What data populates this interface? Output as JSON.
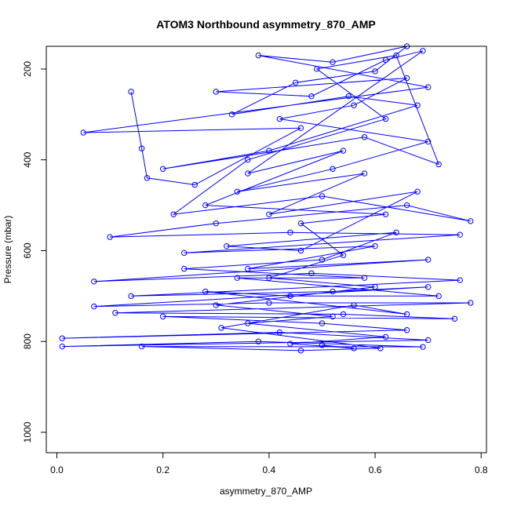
{
  "chart_data": {
    "type": "line",
    "title": "ATOM3 Northbound asymmetry_870_AMP",
    "xlabel": "asymmetry_870_AMP",
    "ylabel": "Pressure (mbar)",
    "xlim": [
      -0.02,
      0.81
    ],
    "ylim": [
      1045,
      150
    ],
    "y_reversed": true,
    "x_ticks": [
      0.0,
      0.2,
      0.4,
      0.6,
      0.8
    ],
    "x_tick_labels": [
      "0.0",
      "0.2",
      "0.4",
      "0.6",
      "0.8"
    ],
    "y_ticks": [
      200,
      400,
      600,
      800,
      1000
    ],
    "y_tick_labels": [
      "200",
      "400",
      "600",
      "800",
      "1000"
    ],
    "grid": false,
    "legend": "none",
    "marker": "open-circle",
    "series": [
      {
        "color": "#0000ff",
        "points": [
          [
            0.14,
            250
          ],
          [
            0.16,
            375
          ],
          [
            0.17,
            440
          ],
          [
            0.26,
            455
          ],
          [
            0.46,
            330
          ],
          [
            0.05,
            340
          ],
          [
            0.7,
            240
          ],
          [
            0.38,
            170
          ],
          [
            0.52,
            185
          ],
          [
            0.66,
            150
          ],
          [
            0.6,
            205
          ],
          [
            0.45,
            230
          ],
          [
            0.33,
            300
          ],
          [
            0.55,
            260
          ],
          [
            0.68,
            280
          ],
          [
            0.4,
            380
          ],
          [
            0.2,
            420
          ],
          [
            0.58,
            350
          ],
          [
            0.72,
            410
          ],
          [
            0.64,
            170
          ],
          [
            0.49,
            200
          ],
          [
            0.62,
            310
          ],
          [
            0.36,
            400
          ],
          [
            0.22,
            520
          ],
          [
            0.5,
            480
          ],
          [
            0.78,
            535
          ],
          [
            0.66,
            500
          ],
          [
            0.3,
            540
          ],
          [
            0.1,
            570
          ],
          [
            0.44,
            560
          ],
          [
            0.76,
            565
          ],
          [
            0.24,
            605
          ],
          [
            0.6,
            590
          ],
          [
            0.36,
            640
          ],
          [
            0.7,
            620
          ],
          [
            0.07,
            668
          ],
          [
            0.48,
            650
          ],
          [
            0.76,
            665
          ],
          [
            0.14,
            700
          ],
          [
            0.52,
            690
          ],
          [
            0.7,
            680
          ],
          [
            0.07,
            723
          ],
          [
            0.4,
            715
          ],
          [
            0.78,
            715
          ],
          [
            0.11,
            737
          ],
          [
            0.54,
            740
          ],
          [
            0.75,
            750
          ],
          [
            0.2,
            745
          ],
          [
            0.5,
            760
          ],
          [
            0.66,
            775
          ],
          [
            0.01,
            793
          ],
          [
            0.42,
            780
          ],
          [
            0.7,
            797
          ],
          [
            0.01,
            811
          ],
          [
            0.38,
            800
          ],
          [
            0.69,
            812
          ],
          [
            0.16,
            811
          ],
          [
            0.46,
            820
          ],
          [
            0.61,
            815
          ],
          [
            0.31,
            770
          ],
          [
            0.56,
            720
          ],
          [
            0.66,
            740
          ],
          [
            0.28,
            690
          ],
          [
            0.44,
            700
          ],
          [
            0.72,
            700
          ],
          [
            0.34,
            660
          ],
          [
            0.58,
            660
          ],
          [
            0.24,
            640
          ],
          [
            0.5,
            620
          ],
          [
            0.64,
            560
          ],
          [
            0.32,
            590
          ],
          [
            0.46,
            600
          ],
          [
            0.68,
            470
          ],
          [
            0.4,
            520
          ],
          [
            0.58,
            430
          ],
          [
            0.34,
            470
          ],
          [
            0.52,
            420
          ],
          [
            0.7,
            360
          ],
          [
            0.42,
            310
          ],
          [
            0.56,
            280
          ],
          [
            0.66,
            220
          ],
          [
            0.3,
            250
          ],
          [
            0.48,
            260
          ],
          [
            0.62,
            180
          ],
          [
            0.69,
            160
          ],
          [
            0.36,
            430
          ],
          [
            0.54,
            380
          ],
          [
            0.28,
            500
          ],
          [
            0.62,
            520
          ],
          [
            0.46,
            540
          ],
          [
            0.54,
            610
          ],
          [
            0.4,
            660
          ],
          [
            0.6,
            680
          ],
          [
            0.3,
            720
          ],
          [
            0.52,
            745
          ],
          [
            0.36,
            760
          ],
          [
            0.62,
            790
          ],
          [
            0.44,
            805
          ],
          [
            0.56,
            815
          ],
          [
            0.5,
            808
          ]
        ]
      }
    ]
  }
}
